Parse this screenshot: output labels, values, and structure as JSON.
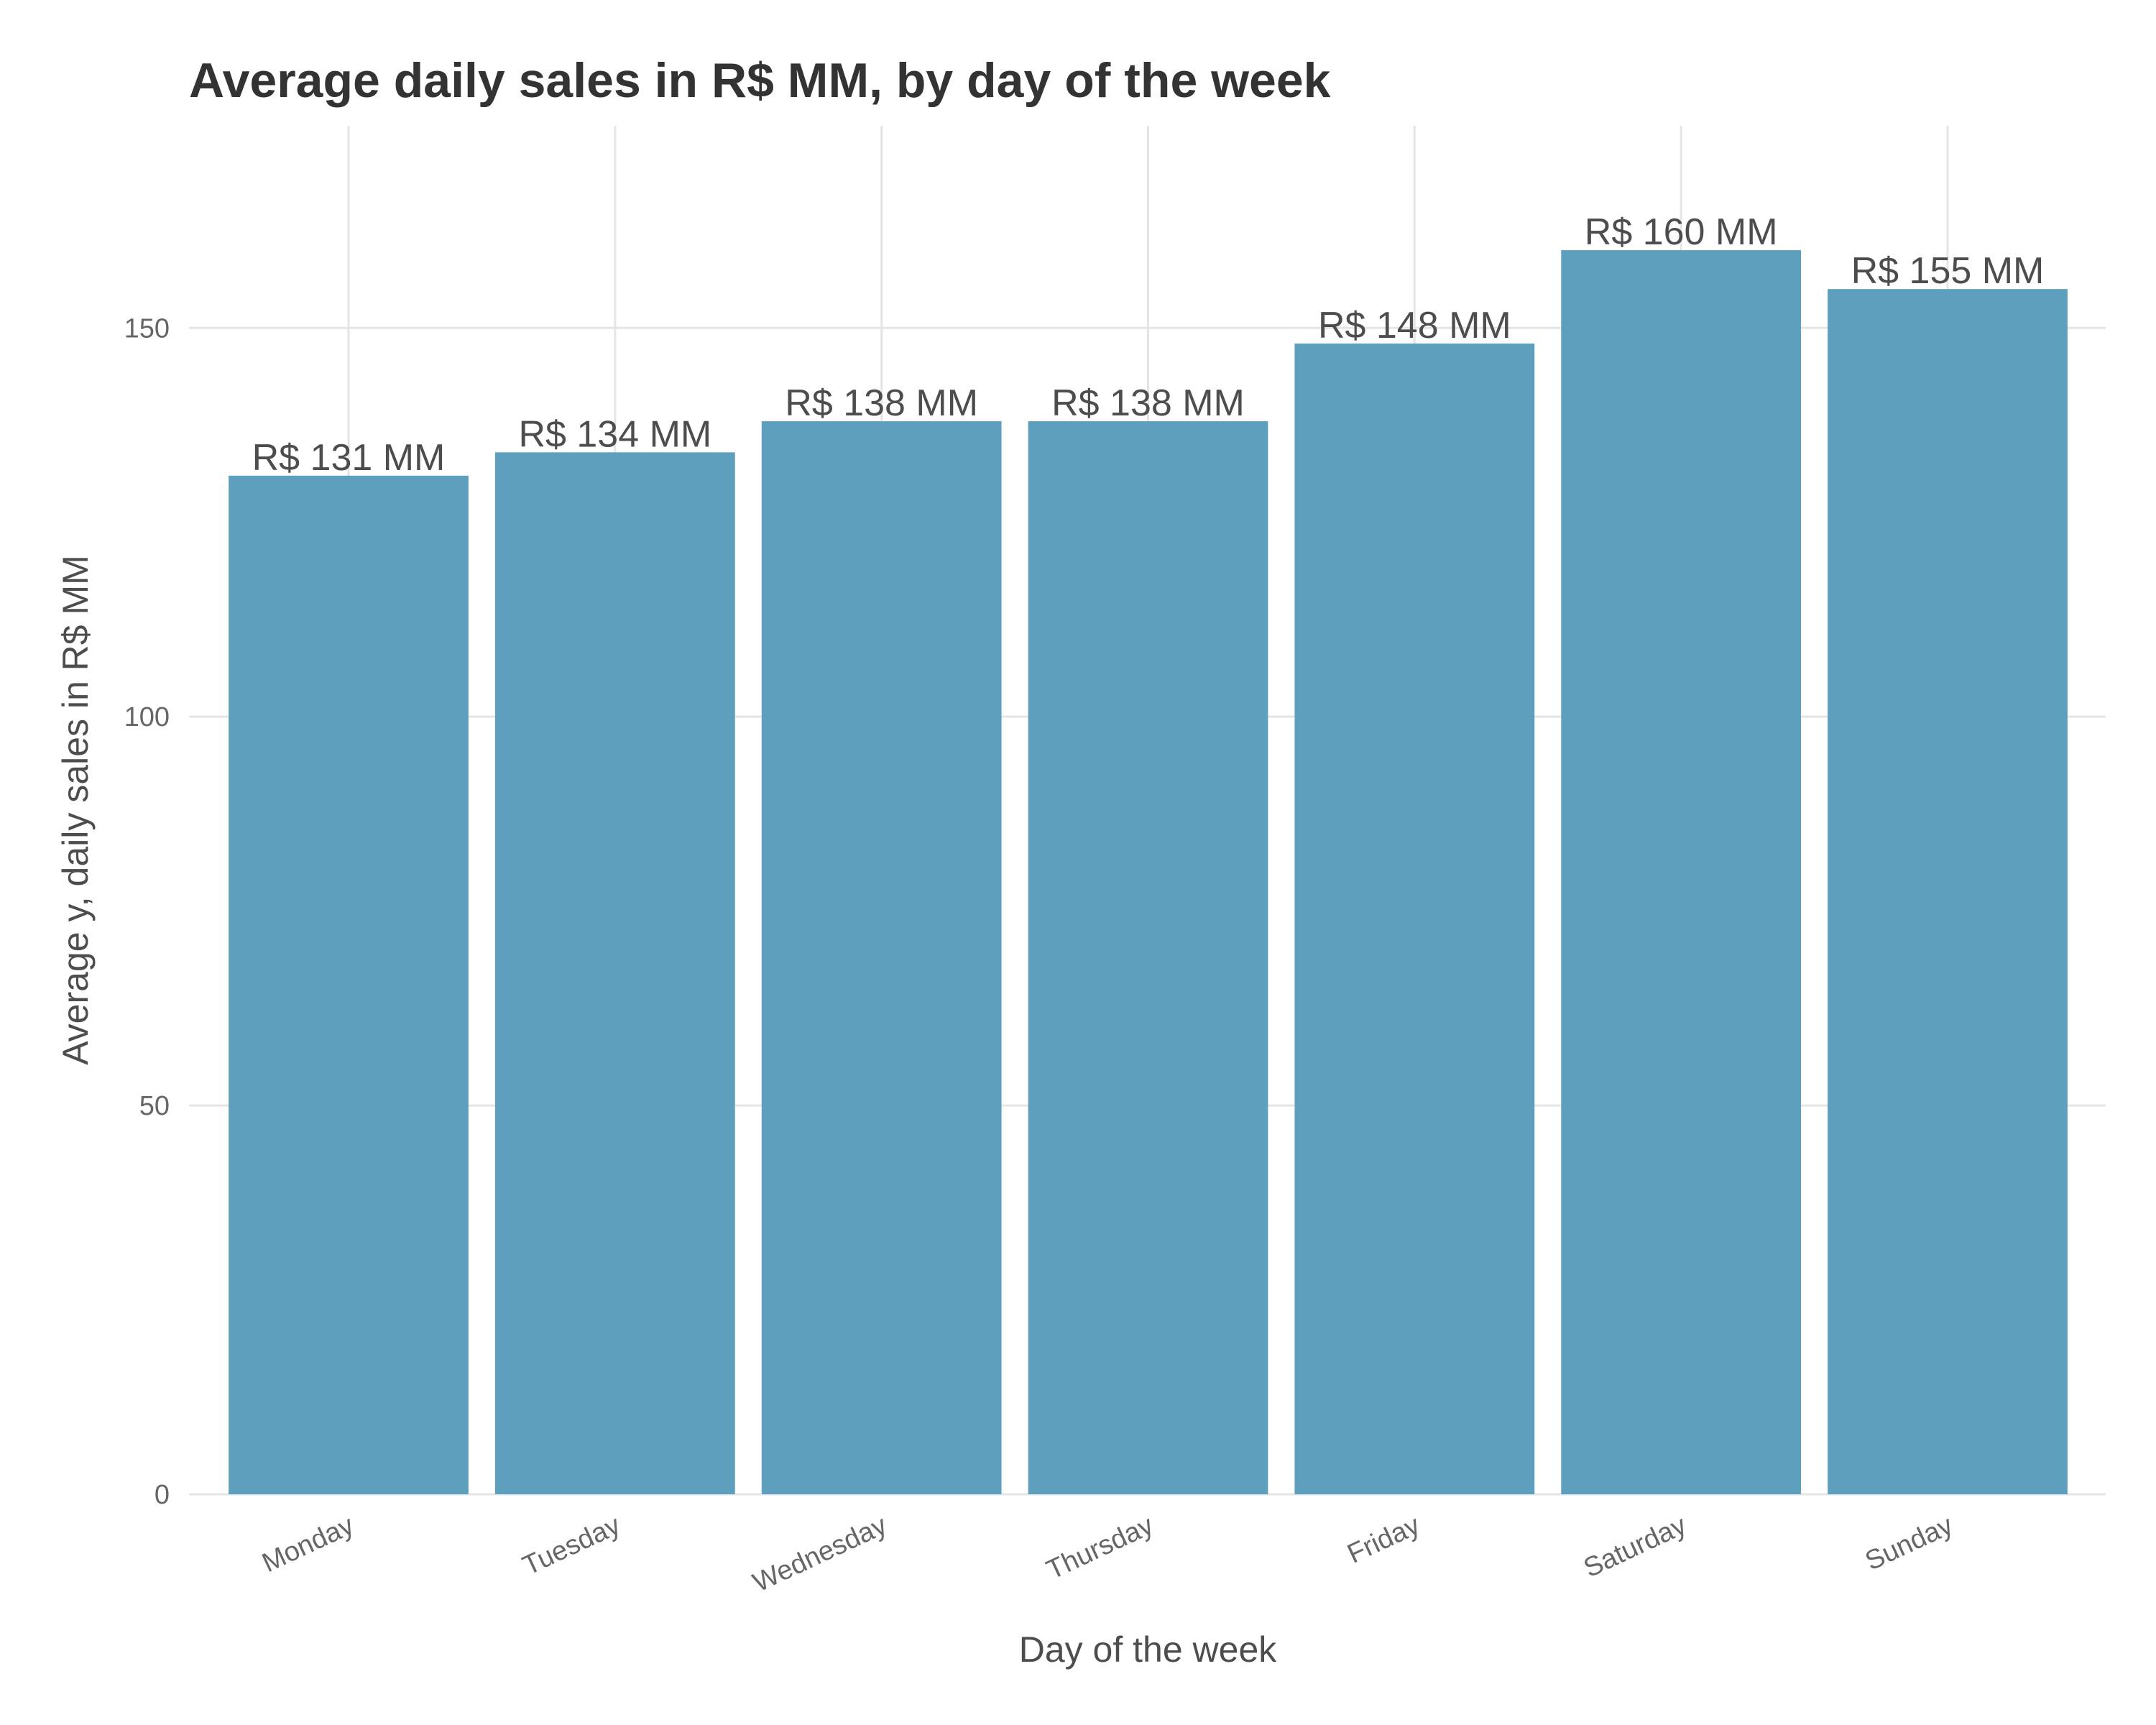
{
  "chart_data": {
    "type": "bar",
    "title": "Average daily sales in R$ MM, by day of the week",
    "xlabel": "Day of the week",
    "ylabel": "Average y, daily sales in R$ MM",
    "categories": [
      "Monday",
      "Tuesday",
      "Wednesday",
      "Thursday",
      "Friday",
      "Saturday",
      "Sunday"
    ],
    "values": [
      131,
      134,
      138,
      138,
      148,
      160,
      155
    ],
    "data_labels": [
      "R$ 131 MM",
      "R$ 134 MM",
      "R$ 138 MM",
      "R$ 138 MM",
      "R$ 148 MM",
      "R$ 160 MM",
      "R$ 155 MM"
    ],
    "yticks": [
      0,
      50,
      100,
      150
    ],
    "ytick_labels": [
      "0",
      "50",
      "100",
      "150"
    ],
    "ylim": [
      0,
      176
    ],
    "grid": true,
    "legend": "none",
    "bar_color": "#5a9dbb"
  }
}
